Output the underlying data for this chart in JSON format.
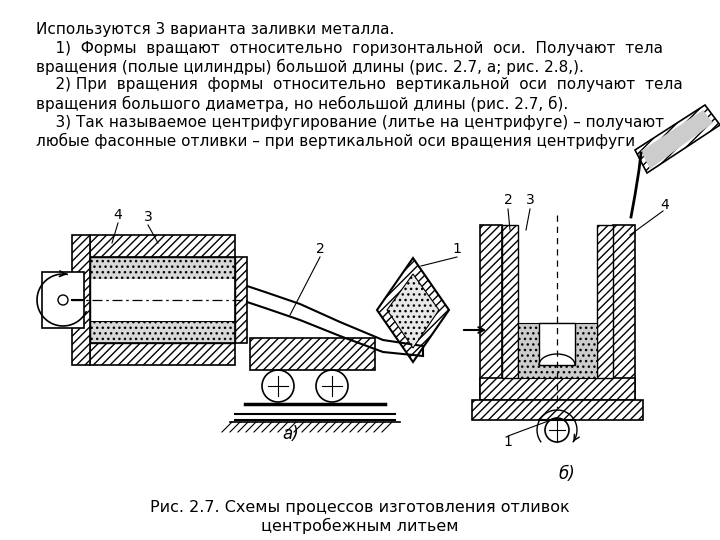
{
  "bg_color": "#ffffff",
  "text_line1": "Используются 3 варианта заливки металла.",
  "text_line2": "    1)  Формы  вращают  относительно  горизонтальной  оси.  Получают  тела",
  "text_line3": "вращения (полые цилиндры) большой длины (рис. 2.7, а; рис. 2.8,).",
  "text_line4": "    2) При  вращения  формы  относительно  вертикальной  оси  получают  тела",
  "text_line5": "вращения большого диаметра, но небольшой длины (рис. 2.7, б).",
  "text_line6": "    3) Так называемое центрифугирование (литье на центрифуге) – получают",
  "text_line7": "любые фасонные отливки – при вертикальной оси вращения центрифуги",
  "caption_line1": "Рис. 2.7. Схемы процессов изготовления отливок",
  "caption_line2": "центробежным литьем",
  "fontsize": 11.0,
  "caption_fontsize": 11.5
}
